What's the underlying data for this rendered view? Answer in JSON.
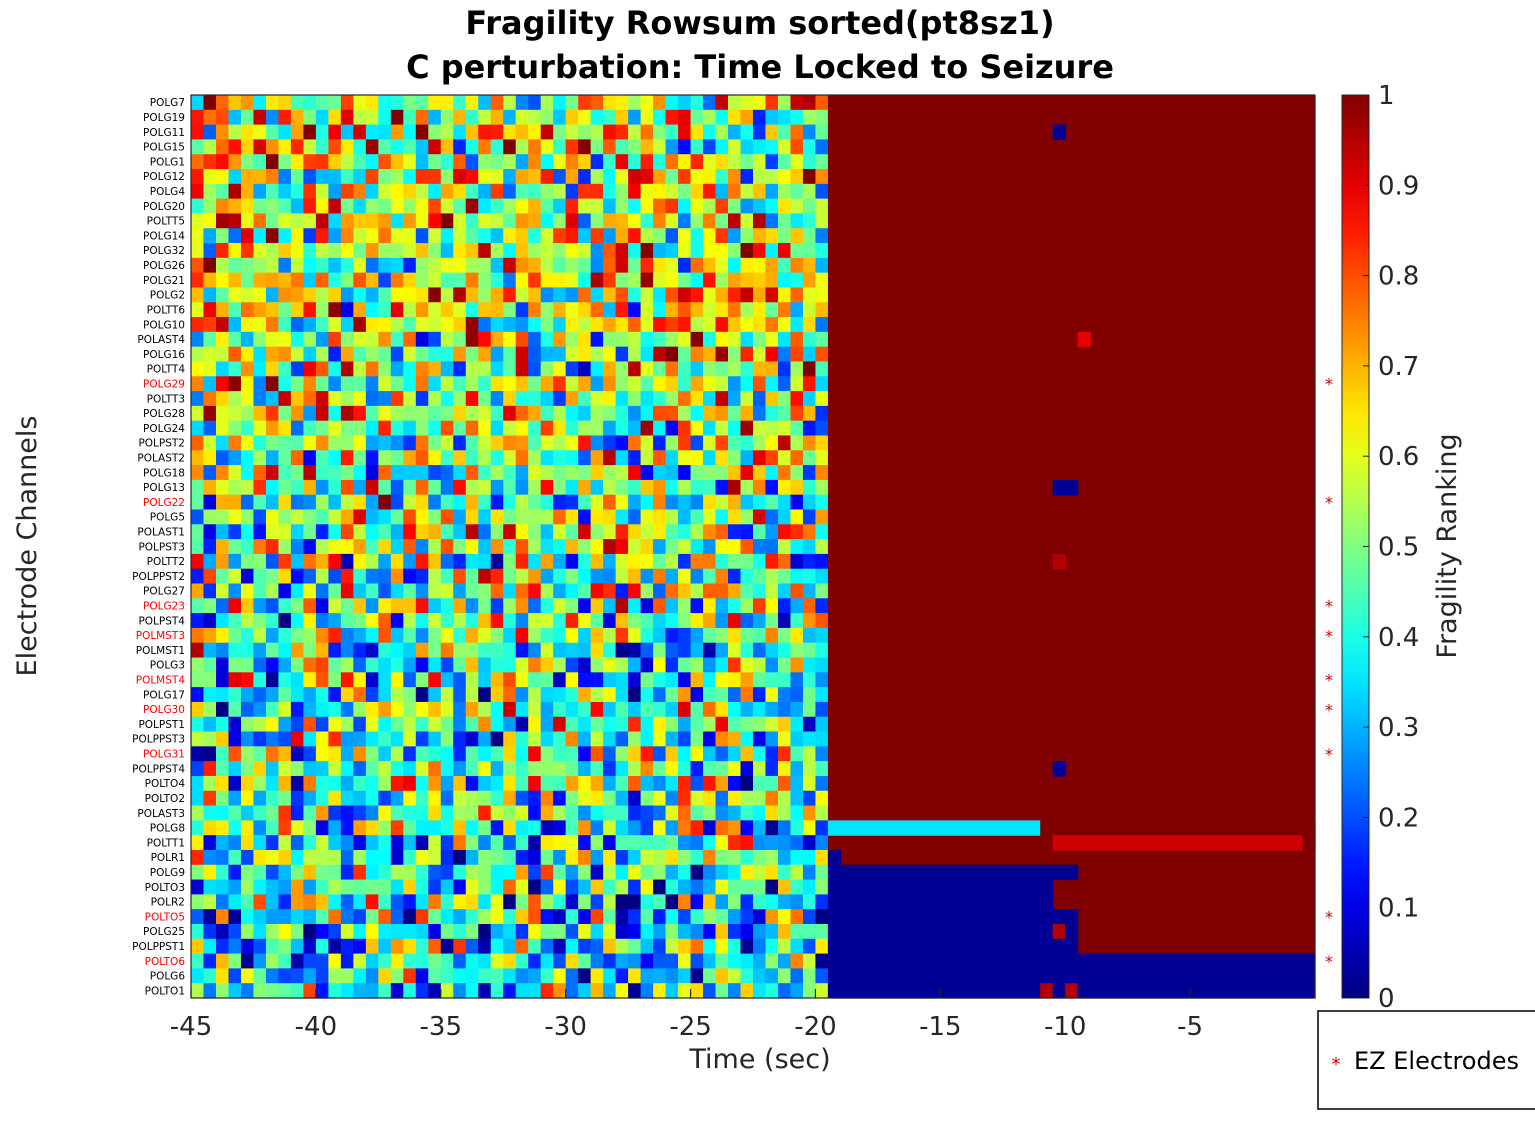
{
  "chart_data": {
    "type": "heatmap",
    "title": "Fragility Rowsum sorted(pt8sz1)",
    "subtitle": "C perturbation:  Time Locked to Seizure",
    "xlabel": "Time (sec)",
    "ylabel": "Electrode Channels",
    "xlim": [
      -45,
      0
    ],
    "x_ticks": [
      "-45",
      "-40",
      "-35",
      "-30",
      "-25",
      "-20",
      "-15",
      "-10",
      "-5"
    ],
    "x_tick_values": [
      -45,
      -40,
      -35,
      -30,
      -25,
      -20,
      -15,
      -10,
      -5
    ],
    "colorbar": {
      "label": "Fragility Ranking",
      "colormap": "jet",
      "range": [
        0,
        1
      ],
      "ticks": [
        "0",
        "0.1",
        "0.2",
        "0.3",
        "0.4",
        "0.5",
        "0.6",
        "0.7",
        "0.8",
        "0.9",
        "1"
      ]
    },
    "legend": {
      "label": "EZ Electrodes",
      "marker": "*",
      "color": "#cc0000",
      "placement": "bottom-right"
    },
    "ez_color": "#ff0000",
    "channels": [
      {
        "name": "POLG7",
        "ez": false
      },
      {
        "name": "POLG19",
        "ez": false
      },
      {
        "name": "POLG11",
        "ez": false
      },
      {
        "name": "POLG15",
        "ez": false
      },
      {
        "name": "POLG1",
        "ez": false
      },
      {
        "name": "POLG12",
        "ez": false
      },
      {
        "name": "POLG4",
        "ez": false
      },
      {
        "name": "POLG20",
        "ez": false
      },
      {
        "name": "POLTT5",
        "ez": false
      },
      {
        "name": "POLG14",
        "ez": false
      },
      {
        "name": "POLG32",
        "ez": false
      },
      {
        "name": "POLG26",
        "ez": false
      },
      {
        "name": "POLG21",
        "ez": false
      },
      {
        "name": "POLG2",
        "ez": false
      },
      {
        "name": "POLTT6",
        "ez": false
      },
      {
        "name": "POLG10",
        "ez": false
      },
      {
        "name": "POLAST4",
        "ez": false
      },
      {
        "name": "POLG16",
        "ez": false
      },
      {
        "name": "POLTT4",
        "ez": false
      },
      {
        "name": "POLG29",
        "ez": true
      },
      {
        "name": "POLTT3",
        "ez": false
      },
      {
        "name": "POLG28",
        "ez": false
      },
      {
        "name": "POLG24",
        "ez": false
      },
      {
        "name": "POLPST2",
        "ez": false
      },
      {
        "name": "POLAST2",
        "ez": false
      },
      {
        "name": "POLG18",
        "ez": false
      },
      {
        "name": "POLG13",
        "ez": false
      },
      {
        "name": "POLG22",
        "ez": true
      },
      {
        "name": "POLG5",
        "ez": false
      },
      {
        "name": "POLAST1",
        "ez": false
      },
      {
        "name": "POLPST3",
        "ez": false
      },
      {
        "name": "POLTT2",
        "ez": false
      },
      {
        "name": "POLPPST2",
        "ez": false
      },
      {
        "name": "POLG27",
        "ez": false
      },
      {
        "name": "POLG23",
        "ez": true
      },
      {
        "name": "POLPST4",
        "ez": false
      },
      {
        "name": "POLMST3",
        "ez": true
      },
      {
        "name": "POLMST1",
        "ez": false
      },
      {
        "name": "POLG3",
        "ez": false
      },
      {
        "name": "POLMST4",
        "ez": true
      },
      {
        "name": "POLG17",
        "ez": false
      },
      {
        "name": "POLG30",
        "ez": true
      },
      {
        "name": "POLPST1",
        "ez": false
      },
      {
        "name": "POLPPST3",
        "ez": false
      },
      {
        "name": "POLG31",
        "ez": true
      },
      {
        "name": "POLPPST4",
        "ez": false
      },
      {
        "name": "POLTO4",
        "ez": false
      },
      {
        "name": "POLTO2",
        "ez": false
      },
      {
        "name": "POLAST3",
        "ez": false
      },
      {
        "name": "POLG8",
        "ez": false
      },
      {
        "name": "POLTT1",
        "ez": false
      },
      {
        "name": "POLR1",
        "ez": false
      },
      {
        "name": "POLG9",
        "ez": false
      },
      {
        "name": "POLTO3",
        "ez": false
      },
      {
        "name": "POLR2",
        "ez": false
      },
      {
        "name": "POLTO5",
        "ez": true
      },
      {
        "name": "POLG25",
        "ez": false
      },
      {
        "name": "POLPPST1",
        "ez": false
      },
      {
        "name": "POLTO6",
        "ez": true
      },
      {
        "name": "POLG6",
        "ez": false
      },
      {
        "name": "POLTO1",
        "ez": false
      }
    ],
    "preictal": {
      "x_range": [
        -45,
        -19.5
      ],
      "description_values": "random 0-1 (noisy pre-ictal period)"
    },
    "ictal": {
      "x_range": [
        -19.5,
        0
      ],
      "default_value": 1.0,
      "segments": [
        {
          "channel": "POLG11",
          "x0": -10.5,
          "x1": -10.0,
          "value": 0.02
        },
        {
          "channel": "POLAST4",
          "x0": -9.5,
          "x1": -9.0,
          "value": 0.9
        },
        {
          "channel": "POLG13",
          "x0": -10.5,
          "x1": -9.5,
          "value": 0.02
        },
        {
          "channel": "POLTT2",
          "x0": -10.5,
          "x1": -10.0,
          "value": 0.95
        },
        {
          "channel": "POLPPST4",
          "x0": -10.5,
          "x1": -10.0,
          "value": 0.02
        },
        {
          "channel": "POLG8",
          "x0": -19.5,
          "x1": -11.0,
          "value": 0.35
        },
        {
          "channel": "POLG8",
          "x0": -11.0,
          "x1": 0,
          "value": 1.0
        },
        {
          "channel": "POLTT1",
          "x0": -10.5,
          "x1": -0.5,
          "value": 0.92
        },
        {
          "channel": "POLTT1",
          "x0": -0.5,
          "x1": 0,
          "value": 1.0
        },
        {
          "channel": "POLR1",
          "x0": -19.5,
          "x1": -19.0,
          "value": 0.02
        },
        {
          "channel": "POLG9",
          "x0": -19.5,
          "x1": -9.5,
          "value": 0.02
        },
        {
          "channel": "POLTO3",
          "x0": -19.5,
          "x1": -10.5,
          "value": 0.02
        },
        {
          "channel": "POLR2",
          "x0": -19.5,
          "x1": -10.5,
          "value": 0.02
        },
        {
          "channel": "POLTO5",
          "x0": -19.5,
          "x1": -9.5,
          "value": 0.02
        },
        {
          "channel": "POLG25",
          "x0": -19.5,
          "x1": -10.5,
          "value": 0.02
        },
        {
          "channel": "POLG25",
          "x0": -10.5,
          "x1": -10.0,
          "value": 0.95
        },
        {
          "channel": "POLG25",
          "x0": -10.0,
          "x1": -9.5,
          "value": 0.02
        },
        {
          "channel": "POLPPST1",
          "x0": -19.5,
          "x1": -9.5,
          "value": 0.02
        },
        {
          "channel": "POLTO6",
          "x0": -19.5,
          "x1": 0,
          "value": 0.02
        },
        {
          "channel": "POLG6",
          "x0": -19.5,
          "x1": 0,
          "value": 0.02
        },
        {
          "channel": "POLTO1",
          "x0": -19.5,
          "x1": -11.0,
          "value": 0.02
        },
        {
          "channel": "POLTO1",
          "x0": -11.0,
          "x1": -10.5,
          "value": 0.95
        },
        {
          "channel": "POLTO1",
          "x0": -10.5,
          "x1": -10.0,
          "value": 0.02
        },
        {
          "channel": "POLTO1",
          "x0": -10.0,
          "x1": -9.5,
          "value": 0.95
        },
        {
          "channel": "POLTO1",
          "x0": -9.5,
          "x1": 0,
          "value": 0.02
        }
      ]
    }
  }
}
